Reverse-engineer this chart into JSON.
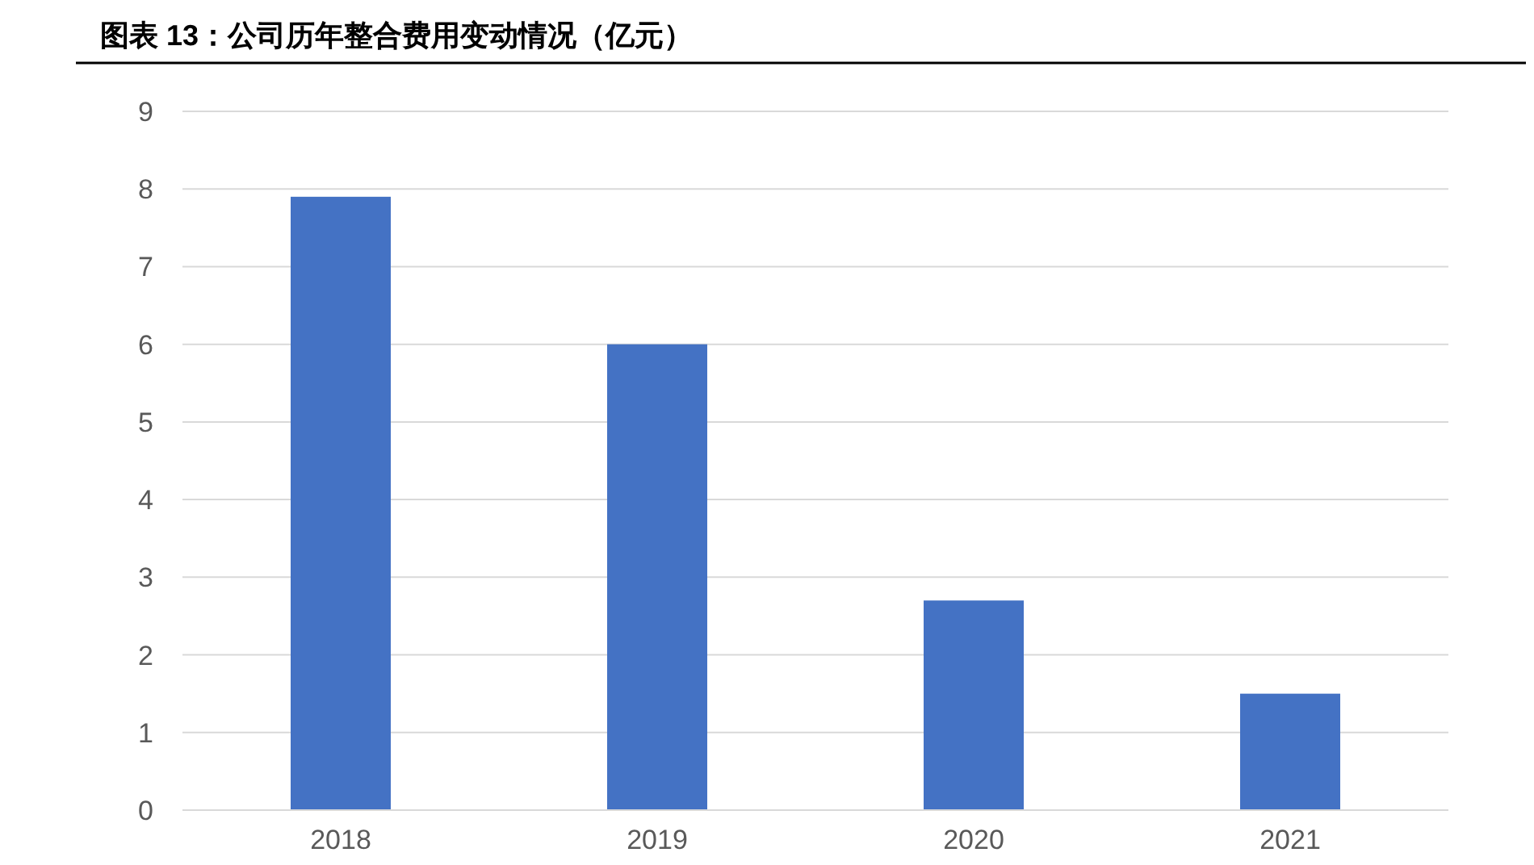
{
  "chart_data": {
    "type": "bar",
    "title": "图表 13：公司历年整合费用变动情况（亿元）",
    "categories": [
      "2018",
      "2019",
      "2020",
      "2021"
    ],
    "values": [
      7.9,
      6.0,
      2.7,
      1.5
    ],
    "color": "#4472c4",
    "ylim": [
      0,
      9
    ],
    "yticks": [
      0,
      1,
      2,
      3,
      4,
      5,
      6,
      7,
      8,
      9
    ],
    "grid": "y"
  }
}
